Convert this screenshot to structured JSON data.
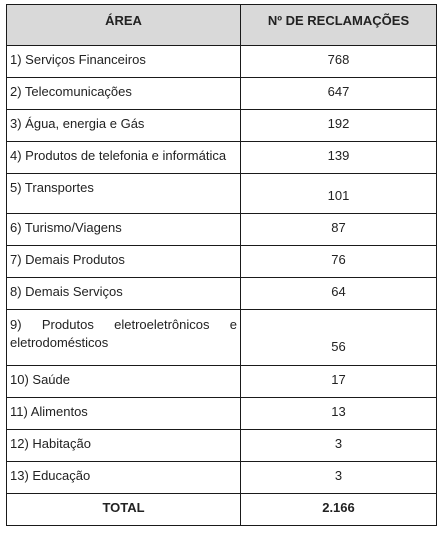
{
  "table": {
    "headers": {
      "area": "ÁREA",
      "count": "Nº DE RECLAMAÇÕES"
    },
    "rows": [
      {
        "area": "1) Serviços Financeiros",
        "count": "768"
      },
      {
        "area": "2) Telecomunicações",
        "count": "647"
      },
      {
        "area": "3) Água, energia e Gás",
        "count": "192"
      },
      {
        "area": "4) Produtos de telefonia e informática",
        "count": "139"
      },
      {
        "area": "5) Transportes",
        "count": "101"
      },
      {
        "area": "6) Turismo/Viagens",
        "count": "87"
      },
      {
        "area": "7) Demais Produtos",
        "count": "76"
      },
      {
        "area": "8) Demais Serviços",
        "count": "64"
      },
      {
        "area": "9) Produtos eletroeletrônicos e eletrodomésticos",
        "count": "56"
      },
      {
        "area": "10) Saúde",
        "count": "17"
      },
      {
        "area": "11) Alimentos",
        "count": "13"
      },
      {
        "area": "12) Habitação",
        "count": "3"
      },
      {
        "area": "13) Educação",
        "count": "3"
      }
    ],
    "total": {
      "label": "TOTAL",
      "count": "2.166"
    }
  }
}
